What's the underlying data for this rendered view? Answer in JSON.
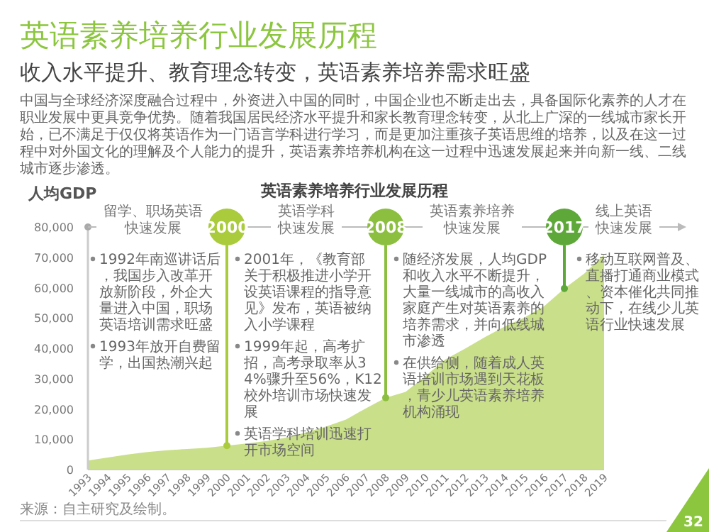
{
  "chart_data": {
    "type": "area",
    "title": "英语素养培养行业发展历程",
    "subtitle": "收入水平提升、教育理念转变，英语素养培养需求旺盛",
    "ylabel": "人均GDP",
    "x": [
      1993,
      1994,
      1995,
      1996,
      1997,
      1998,
      1999,
      2000,
      2001,
      2002,
      2003,
      2004,
      2005,
      2006,
      2007,
      2008,
      2009,
      2010,
      2011,
      2012,
      2013,
      2014,
      2015,
      2016,
      2017,
      2018,
      2019
    ],
    "values": [
      3000,
      4000,
      5000,
      5800,
      6400,
      6800,
      7200,
      7900,
      8600,
      9400,
      10500,
      12300,
      14200,
      16500,
      20200,
      23700,
      25600,
      30800,
      36300,
      39900,
      43700,
      47200,
      50200,
      54000,
      59700,
      64600,
      70900
    ],
    "color": "#c9df8a",
    "xlim": [
      1993,
      2019
    ],
    "xticks": [
      1993,
      1994,
      1995,
      1996,
      1997,
      1998,
      1999,
      2000,
      2001,
      2002,
      2003,
      2004,
      2005,
      2006,
      2007,
      2008,
      2009,
      2010,
      2011,
      2012,
      2013,
      2014,
      2015,
      2016,
      2017,
      2018,
      2019
    ],
    "ylim": [
      0,
      80000
    ],
    "yticks": [
      0,
      {
        "value": 10000,
        "label": "10,000"
      },
      {
        "value": 20000,
        "label": "20,000"
      },
      {
        "value": 30000,
        "label": "30,000"
      },
      {
        "value": 40000,
        "label": "40,000"
      },
      {
        "value": 50000,
        "label": "50,000"
      },
      {
        "value": 60000,
        "label": "60,000"
      },
      {
        "value": 70000,
        "label": "70,000"
      },
      {
        "value": 80000,
        "label": "80,000"
      }
    ],
    "grid": false,
    "annotations": [
      "中国与全球经济深度融合过程中，外资进入中国的同时，中国企业也不断走出去，具备国际化素养的人才在职业发展中更具竞争优势。随着我国居民经济水平提升和家长教育理念转变，从北上广深的一线城市家长开始，已不满足于仅仅将英语作为一门语言学科进行学习，而是更加注重孩子英语思维的培养，以及在这一过程中对外国文化的理解及个人能力的提升，英语素养培养机构在这一过程中迅速发展起来并向新一线、二线城市逐步渗透。",
      "英语素养培养行业发展历程",
      "留学、职场英语快速发展",
      "英语学科快速发展",
      "英语素养培养快速发展",
      "线上英语快速发展",
      {
        "text": "2000",
        "x": 2000,
        "y": 7900
      },
      {
        "text": "2008",
        "x": 2008,
        "y": 23700
      },
      {
        "text": "2017",
        "x": 2017,
        "y": 59700
      },
      "1992年南巡讲话后，我国步入改革开放新阶段，外企大量进入中国，职场英语培训需求旺盛",
      "1993年放开自费留学，出国热潮兴起",
      "2001年，《教育部关于积极推进小学开设英语课程的指导意见》发布，英语被纳入小学课程",
      "1999年起，高考扩招，高考录取率从34%骤升至56%，K12校外培训市场快速发展",
      "英语学科培训迅速打开市场空间",
      "随经济发展，人均GDP和收入水平不断提升，大量一线城市的高收入家庭产生对英语素养的培养需求，并向低线城市渗透",
      "在供给侧，随着成人英语培训市场遇到天花板，青少儿英语素养培养机构涌现",
      "移动互联网普及、直播打通商业模式、资本催化共同推动下，在线少儿英语行业快速发展",
      "来源：自主研究及绘制。",
      "32"
    ]
  }
}
